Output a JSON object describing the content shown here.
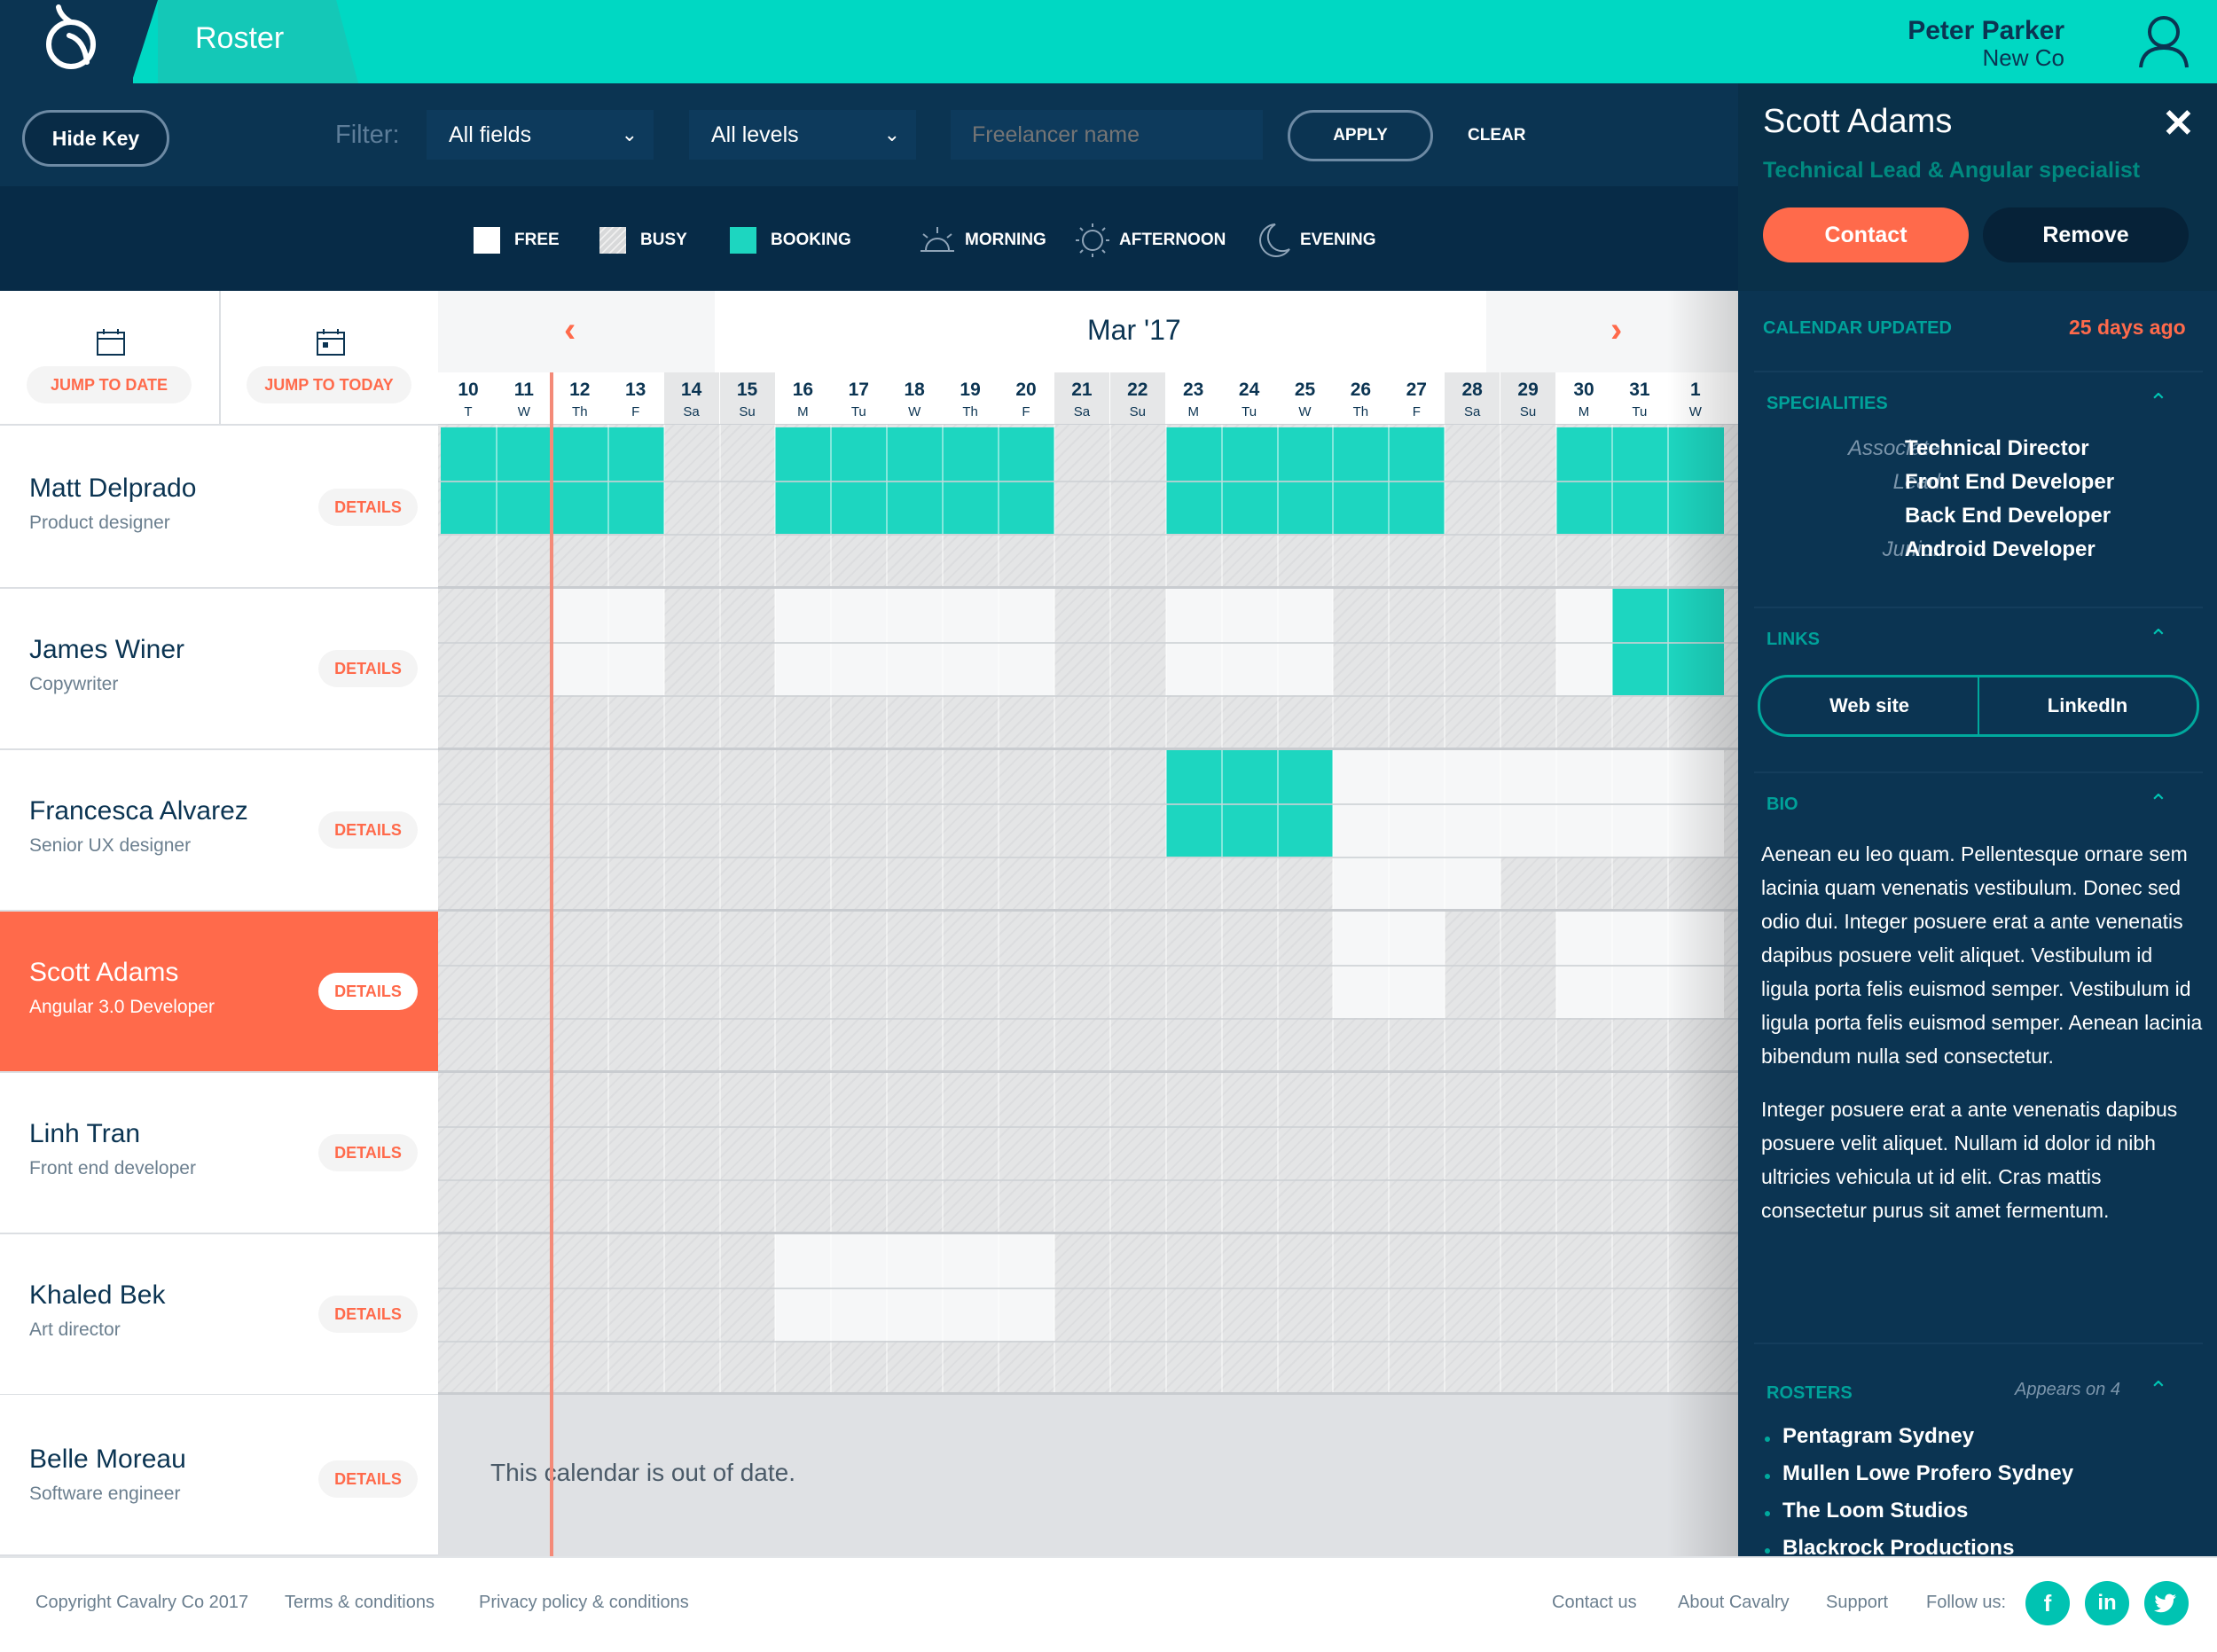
{
  "app": {
    "title": "Roster"
  },
  "user": {
    "name": "Peter Parker",
    "company": "New Co"
  },
  "filters": {
    "hide_key_label": "Hide Key",
    "filter_label": "Filter:",
    "fields_value": "All fields",
    "levels_value": "All levels",
    "freelancer_placeholder": "Freelancer name",
    "apply_label": "APPLY",
    "clear_label": "CLEAR"
  },
  "key": {
    "free": "FREE",
    "busy": "BUSY",
    "booking": "BOOKING",
    "morning": "MORNING",
    "afternoon": "AFTERNOON",
    "evening": "EVENING",
    "colors": {
      "free": "#ffffff",
      "busy": "#d8d9da",
      "booking": "#1dd6c0"
    }
  },
  "jump": {
    "to_date": "JUMP TO DATE",
    "to_today": "JUMP TO TODAY"
  },
  "calendar": {
    "month": "Mar '17",
    "out_of_date_text": "This calendar is out of date.",
    "days": [
      {
        "n": "10",
        "d": "T"
      },
      {
        "n": "11",
        "d": "W"
      },
      {
        "n": "12",
        "d": "Th"
      },
      {
        "n": "13",
        "d": "F"
      },
      {
        "n": "14",
        "d": "Sa"
      },
      {
        "n": "15",
        "d": "Su"
      },
      {
        "n": "16",
        "d": "M"
      },
      {
        "n": "17",
        "d": "Tu"
      },
      {
        "n": "18",
        "d": "W"
      },
      {
        "n": "19",
        "d": "Th"
      },
      {
        "n": "20",
        "d": "F"
      },
      {
        "n": "21",
        "d": "Sa"
      },
      {
        "n": "22",
        "d": "Su"
      },
      {
        "n": "23",
        "d": "M"
      },
      {
        "n": "24",
        "d": "Tu"
      },
      {
        "n": "25",
        "d": "W"
      },
      {
        "n": "26",
        "d": "Th"
      },
      {
        "n": "27",
        "d": "F"
      },
      {
        "n": "28",
        "d": "Sa"
      },
      {
        "n": "29",
        "d": "Su"
      },
      {
        "n": "30",
        "d": "M"
      },
      {
        "n": "31",
        "d": "Tu"
      },
      {
        "n": "1",
        "d": "W"
      }
    ]
  },
  "people": [
    {
      "name": "Matt Delprado",
      "role": "Product designer",
      "details": "DETAILS"
    },
    {
      "name": "James Winer",
      "role": "Copywriter",
      "details": "DETAILS"
    },
    {
      "name": "Francesca Alvarez",
      "role": "Senior UX designer",
      "details": "DETAILS"
    },
    {
      "name": "Scott Adams",
      "role": "Angular 3.0 Developer",
      "details": "DETAILS"
    },
    {
      "name": "Linh Tran",
      "role": "Front end developer",
      "details": "DETAILS"
    },
    {
      "name": "Khaled Bek",
      "role": "Art director",
      "details": "DETAILS"
    },
    {
      "name": "Belle Moreau",
      "role": "Software engineer",
      "details": "DETAILS"
    }
  ],
  "panel": {
    "name": "Scott Adams",
    "title": "Technical Lead & Angular specialist",
    "contact_label": "Contact",
    "remove_label": "Remove",
    "calendar_updated_label": "CALENDAR UPDATED",
    "calendar_updated_value": "25 days ago",
    "specialities_label": "SPECIALITIES",
    "specialities": [
      {
        "level": "Associate",
        "role": "Technical Director"
      },
      {
        "level": "Lead",
        "role": "Front End Developer"
      },
      {
        "level": "",
        "role": "Back End Developer"
      },
      {
        "level": "Junior",
        "role": "Android Developer"
      }
    ],
    "links_label": "LINKS",
    "links": [
      "Web site",
      "LinkedIn"
    ],
    "bio_label": "BIO",
    "bio_p1": "Aenean eu leo quam. Pellentesque ornare sem lacinia quam venenatis vestibulum. Donec sed odio dui. Integer posuere erat a ante venenatis dapibus posuere velit aliquet. Vestibulum id ligula porta felis euismod semper. Vestibulum id ligula porta felis euismod semper. Aenean lacinia bibendum nulla sed consectetur.",
    "bio_p2": "Integer posuere erat a ante venenatis dapibus posuere velit aliquet. Nullam id dolor id nibh ultricies vehicula ut id elit. Cras mattis consectetur purus sit amet fermentum.",
    "rosters_label": "ROSTERS",
    "rosters_appears": "Appears on 4",
    "rosters": [
      "Pentagram Sydney",
      "Mullen Lowe Profero Sydney",
      "The Loom Studios",
      "Blackrock Productions"
    ]
  },
  "footer": {
    "copyright": "Copyright Cavalry Co 2017",
    "terms": "Terms & conditions",
    "privacy": "Privacy policy & conditions",
    "contact": "Contact us",
    "about": "About Cavalry",
    "support": "Support",
    "follow": "Follow us:",
    "social_icons": [
      "facebook-icon",
      "linkedin-icon",
      "twitter-icon"
    ]
  }
}
